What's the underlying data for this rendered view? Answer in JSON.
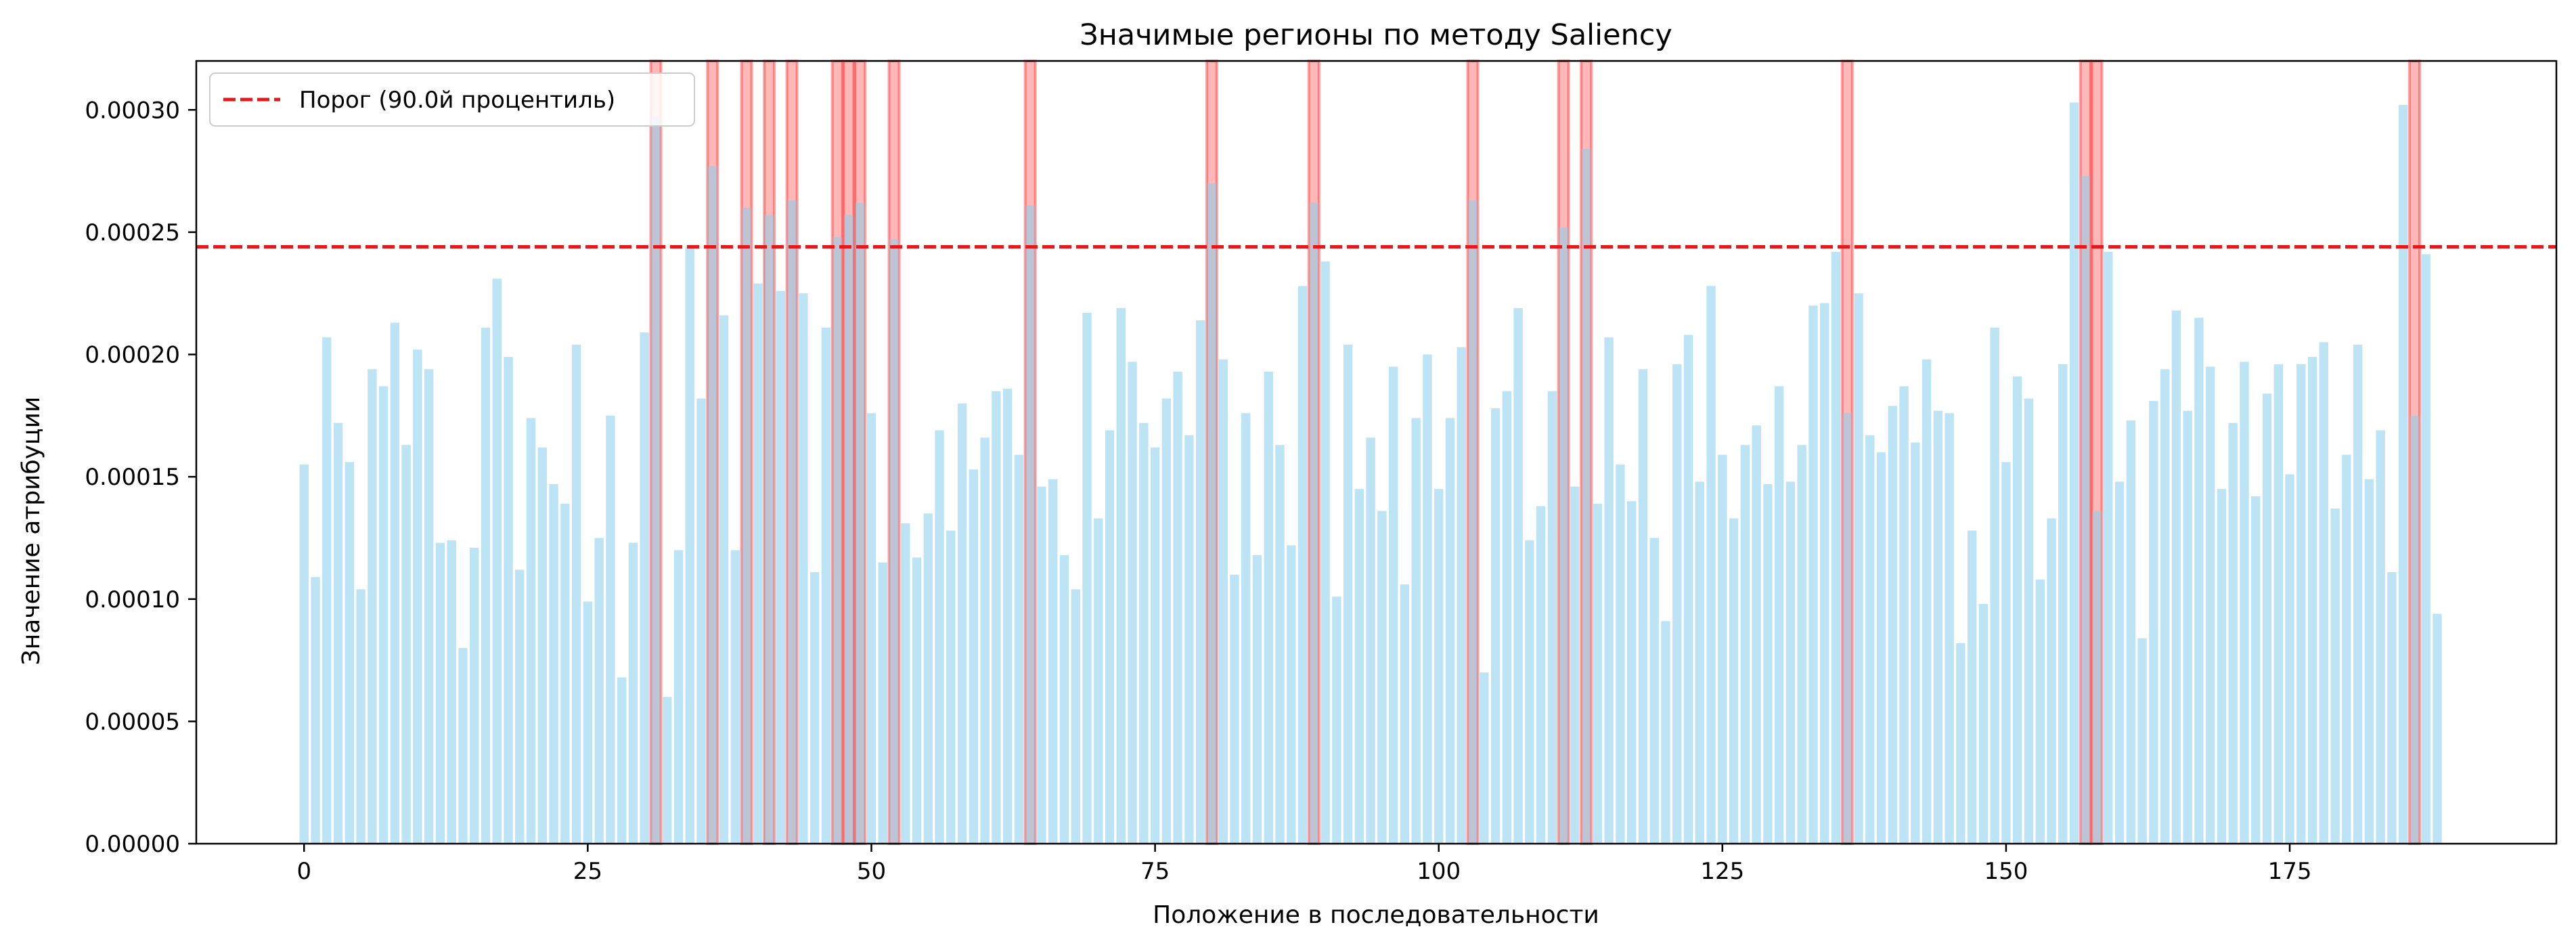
{
  "chart_data": {
    "type": "bar",
    "title": "Значимые регионы по методу Saliency",
    "xlabel": "Положение в последовательности",
    "ylabel": "Значение атрибуции",
    "xlim": [
      -9.5,
      198.5
    ],
    "ylim": [
      0,
      0.00032
    ],
    "xticks": [
      0,
      25,
      50,
      75,
      100,
      125,
      150,
      175
    ],
    "yticks": [
      0,
      5e-05,
      0.0001,
      0.00015,
      0.0002,
      0.00025,
      0.0003
    ],
    "ytick_labels": [
      "0.00000",
      "0.00005",
      "0.00010",
      "0.00015",
      "0.00020",
      "0.00025",
      "0.00030"
    ],
    "bar_color": "#87ceeb",
    "highlight_color": "#ff0000",
    "threshold": {
      "value": 0.000244,
      "label": "Порог (90.0й процентиль)",
      "color": "#e31a1c",
      "style": "dashed"
    },
    "legend_position": "top-left",
    "grid": false,
    "highlighted_positions": [
      31,
      36,
      39,
      41,
      43,
      47,
      48,
      49,
      52,
      64,
      80,
      89,
      103,
      111,
      113,
      136,
      157,
      158,
      186
    ],
    "values": [
      0.000155,
      0.000109,
      0.000207,
      0.000172,
      0.000156,
      0.000104,
      0.000194,
      0.000187,
      0.000213,
      0.000163,
      0.000202,
      0.000194,
      0.000123,
      0.000124,
      8e-05,
      0.000121,
      0.000211,
      0.000231,
      0.000199,
      0.000112,
      0.000174,
      0.000162,
      0.000147,
      0.000139,
      0.000204,
      9.9e-05,
      0.000125,
      0.000175,
      6.8e-05,
      0.000123,
      0.000209,
      0.000297,
      6e-05,
      0.00012,
      0.000244,
      0.000182,
      0.000277,
      0.000216,
      0.00012,
      0.00026,
      0.000229,
      0.000257,
      0.000226,
      0.000263,
      0.000225,
      0.000111,
      0.000211,
      0.000248,
      0.000257,
      0.000262,
      0.000176,
      0.000115,
      0.000247,
      0.000131,
      0.000117,
      0.000135,
      0.000169,
      0.000128,
      0.00018,
      0.000153,
      0.000166,
      0.000185,
      0.000186,
      0.000159,
      0.000261,
      0.000146,
      0.000149,
      0.000118,
      0.000104,
      0.000217,
      0.000133,
      0.000169,
      0.000219,
      0.000197,
      0.000172,
      0.000162,
      0.000182,
      0.000193,
      0.000167,
      0.000214,
      0.00027,
      0.000198,
      0.00011,
      0.000176,
      0.000118,
      0.000193,
      0.000163,
      0.000122,
      0.000228,
      0.000262,
      0.000238,
      0.000101,
      0.000204,
      0.000145,
      0.000166,
      0.000136,
      0.000195,
      0.000106,
      0.000174,
      0.0002,
      0.000145,
      0.000174,
      0.000203,
      0.000263,
      7e-05,
      0.000178,
      0.000185,
      0.000219,
      0.000124,
      0.000138,
      0.000185,
      0.000252,
      0.000146,
      0.000284,
      0.000139,
      0.000207,
      0.000155,
      0.00014,
      0.000194,
      0.000125,
      9.1e-05,
      0.000196,
      0.000208,
      0.000148,
      0.000228,
      0.000159,
      0.000133,
      0.000163,
      0.000171,
      0.000147,
      0.000187,
      0.000148,
      0.000163,
      0.00022,
      0.000221,
      0.000242,
      0.000176,
      0.000225,
      0.000167,
      0.00016,
      0.000179,
      0.000187,
      0.000164,
      0.000198,
      0.000177,
      0.000176,
      8.2e-05,
      0.000128,
      9.8e-05,
      0.000211,
      0.000156,
      0.000191,
      0.000182,
      0.000108,
      0.000133,
      0.000196,
      0.000303,
      0.000273,
      0.000136,
      0.000242,
      0.000148,
      0.000173,
      8.4e-05,
      0.000181,
      0.000194,
      0.000218,
      0.000177,
      0.000215,
      0.000195,
      0.000145,
      0.000172,
      0.000197,
      0.000142,
      0.000184,
      0.000196,
      0.000151,
      0.000196,
      0.000199,
      0.000205,
      0.000137,
      0.000159,
      0.000204,
      0.000149,
      0.000169,
      0.000111,
      0.000302,
      0.000175,
      0.000241,
      9.4e-05
    ]
  }
}
